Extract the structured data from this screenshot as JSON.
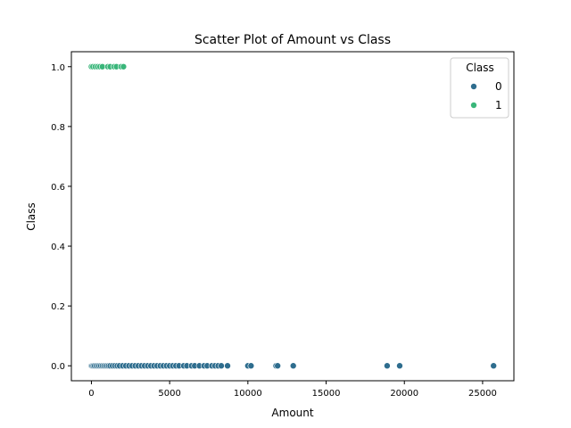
{
  "chart_data": {
    "type": "scatter",
    "title": "Scatter Plot of Amount vs Class",
    "xlabel": "Amount",
    "ylabel": "Class",
    "xlim": [
      -1280,
      27000
    ],
    "ylim": [
      -0.05,
      1.05
    ],
    "xticks": [
      0,
      5000,
      10000,
      15000,
      20000,
      25000
    ],
    "yticks": [
      0.0,
      0.2,
      0.4,
      0.6,
      0.8,
      1.0
    ],
    "xtick_labels": [
      "0",
      "5000",
      "10000",
      "15000",
      "20000",
      "25000"
    ],
    "ytick_labels": [
      "0.0",
      "0.2",
      "0.4",
      "0.6",
      "0.8",
      "1.0"
    ],
    "grid": false,
    "legend": {
      "title": "Class",
      "placement": "top-right",
      "entries": [
        "0",
        "1"
      ]
    },
    "series": [
      {
        "name": "0",
        "color": "#2e6d8e",
        "points": [
          [
            0,
            0
          ],
          [
            50,
            0
          ],
          [
            120,
            0
          ],
          [
            200,
            0
          ],
          [
            300,
            0
          ],
          [
            400,
            0
          ],
          [
            500,
            0
          ],
          [
            600,
            0
          ],
          [
            700,
            0
          ],
          [
            800,
            0
          ],
          [
            900,
            0
          ],
          [
            1000,
            0
          ],
          [
            1100,
            0
          ],
          [
            1200,
            0
          ],
          [
            1350,
            0
          ],
          [
            1500,
            0
          ],
          [
            1650,
            0
          ],
          [
            1800,
            0
          ],
          [
            2000,
            0
          ],
          [
            2200,
            0
          ],
          [
            2400,
            0
          ],
          [
            2600,
            0
          ],
          [
            2800,
            0
          ],
          [
            3000,
            0
          ],
          [
            3200,
            0
          ],
          [
            3400,
            0
          ],
          [
            3600,
            0
          ],
          [
            3800,
            0
          ],
          [
            4000,
            0
          ],
          [
            4200,
            0
          ],
          [
            4400,
            0
          ],
          [
            4600,
            0
          ],
          [
            4800,
            0
          ],
          [
            5000,
            0
          ],
          [
            5200,
            0
          ],
          [
            5400,
            0
          ],
          [
            5600,
            0
          ],
          [
            5900,
            0
          ],
          [
            6100,
            0
          ],
          [
            6400,
            0
          ],
          [
            6600,
            0
          ],
          [
            6900,
            0
          ],
          [
            7200,
            0
          ],
          [
            7400,
            0
          ],
          [
            7700,
            0
          ],
          [
            7900,
            0
          ],
          [
            8100,
            0
          ],
          [
            8300,
            0
          ],
          [
            8700,
            0
          ],
          [
            10000,
            0
          ],
          [
            10200,
            0
          ],
          [
            11800,
            0
          ],
          [
            11900,
            0
          ],
          [
            12900,
            0
          ],
          [
            18900,
            0
          ],
          [
            19700,
            0
          ],
          [
            25700,
            0
          ]
        ]
      },
      {
        "name": "1",
        "color": "#3ab67a",
        "points": [
          [
            0,
            1
          ],
          [
            100,
            1
          ],
          [
            250,
            1
          ],
          [
            400,
            1
          ],
          [
            550,
            1
          ],
          [
            700,
            1
          ],
          [
            1050,
            1
          ],
          [
            1200,
            1
          ],
          [
            1450,
            1
          ],
          [
            1600,
            1
          ],
          [
            1900,
            1
          ],
          [
            2050,
            1
          ]
        ]
      }
    ]
  }
}
